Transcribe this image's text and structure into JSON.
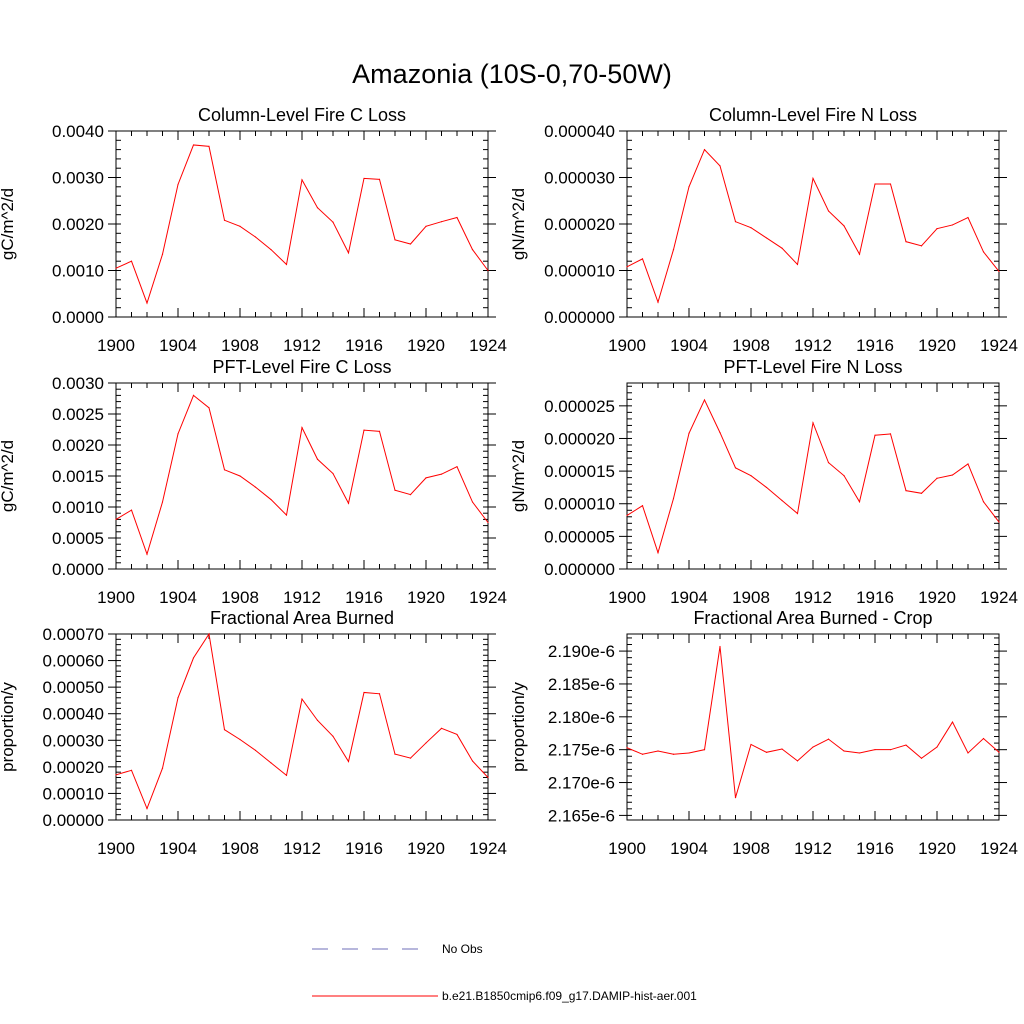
{
  "figure": {
    "title": "Amazonia (10S-0,70-50W)"
  },
  "legend": {
    "obs_label": "No Obs",
    "model_label": "b.e21.B1850cmip6.f09_g17.DAMIP-hist-aer.001",
    "obs_color": "#6f6fb8",
    "model_color": "#ff0000"
  },
  "chart_data": [
    {
      "type": "line",
      "title": "Column-Level Fire C Loss",
      "ylabel": "gC/m^2/d",
      "xlim": [
        1900,
        1924
      ],
      "ylim": [
        0,
        0.004
      ],
      "xticks": [
        "1900",
        "1904",
        "1908",
        "1912",
        "1916",
        "1920",
        "1924"
      ],
      "yticks": [
        [
          "0.0000",
          0
        ],
        [
          "0.0010",
          0.001
        ],
        [
          "0.0020",
          0.002
        ],
        [
          "0.0030",
          0.003
        ],
        [
          "0.0040",
          0.004
        ]
      ],
      "series": [
        {
          "color": "#ff0000",
          "x": [
            1900,
            1901,
            1902,
            1903,
            1904,
            1905,
            1906,
            1907,
            1908,
            1909,
            1910,
            1911,
            1912,
            1913,
            1914,
            1915,
            1916,
            1917,
            1918,
            1919,
            1920,
            1921,
            1922,
            1923,
            1924
          ],
          "y": [
            0.00105,
            0.0012,
            0.0003,
            0.00135,
            0.00285,
            0.0037,
            0.00367,
            0.00208,
            0.00195,
            0.00172,
            0.00145,
            0.00113,
            0.00295,
            0.00235,
            0.00204,
            0.00138,
            0.00298,
            0.00296,
            0.00166,
            0.00157,
            0.00195,
            0.00205,
            0.00214,
            0.00145,
            0.001
          ]
        }
      ]
    },
    {
      "type": "line",
      "title": "Column-Level Fire N Loss",
      "ylabel": "gN/m^2/d",
      "xlim": [
        1900,
        1924
      ],
      "ylim": [
        0,
        4e-05
      ],
      "xticks": [
        "1900",
        "1904",
        "1908",
        "1912",
        "1916",
        "1920",
        "1924"
      ],
      "yticks": [
        [
          "0.000000",
          0
        ],
        [
          "0.000010",
          1e-05
        ],
        [
          "0.000020",
          2e-05
        ],
        [
          "0.000030",
          3e-05
        ],
        [
          "0.000040",
          4e-05
        ]
      ],
      "series": [
        {
          "color": "#ff0000",
          "x": [
            1900,
            1901,
            1902,
            1903,
            1904,
            1905,
            1906,
            1907,
            1908,
            1909,
            1910,
            1911,
            1912,
            1913,
            1914,
            1915,
            1916,
            1917,
            1918,
            1919,
            1920,
            1921,
            1922,
            1923,
            1924
          ],
          "y": [
            1.08e-05,
            1.25e-05,
            3.2e-06,
            1.45e-05,
            2.8e-05,
            3.6e-05,
            3.25e-05,
            2.05e-05,
            1.92e-05,
            1.7e-05,
            1.48e-05,
            1.13e-05,
            2.98e-05,
            2.28e-05,
            1.96e-05,
            1.35e-05,
            2.86e-05,
            2.86e-05,
            1.62e-05,
            1.53e-05,
            1.9e-05,
            1.98e-05,
            2.14e-05,
            1.4e-05,
            9.8e-06
          ]
        }
      ]
    },
    {
      "type": "line",
      "title": "PFT-Level Fire C Loss",
      "ylabel": "gC/m^2/d",
      "xlim": [
        1900,
        1924
      ],
      "ylim": [
        0,
        0.003
      ],
      "xticks": [
        "1900",
        "1904",
        "1908",
        "1912",
        "1916",
        "1920",
        "1924"
      ],
      "yticks": [
        [
          "0.0000",
          0
        ],
        [
          "0.0005",
          0.0005
        ],
        [
          "0.0010",
          0.001
        ],
        [
          "0.0015",
          0.0015
        ],
        [
          "0.0020",
          0.002
        ],
        [
          "0.0025",
          0.0025
        ],
        [
          "0.0030",
          0.003
        ]
      ],
      "series": [
        {
          "color": "#ff0000",
          "x": [
            1900,
            1901,
            1902,
            1903,
            1904,
            1905,
            1906,
            1907,
            1908,
            1909,
            1910,
            1911,
            1912,
            1913,
            1914,
            1915,
            1916,
            1917,
            1918,
            1919,
            1920,
            1921,
            1922,
            1923,
            1924
          ],
          "y": [
            0.0008,
            0.00095,
            0.00024,
            0.00108,
            0.00218,
            0.0028,
            0.0026,
            0.0016,
            0.0015,
            0.00132,
            0.00112,
            0.00087,
            0.00228,
            0.00177,
            0.00154,
            0.00106,
            0.00224,
            0.00222,
            0.00127,
            0.0012,
            0.00147,
            0.00153,
            0.00165,
            0.00108,
            0.00075
          ]
        }
      ]
    },
    {
      "type": "line",
      "title": "PFT-Level Fire N Loss",
      "ylabel": "gN/m^2/d",
      "xlim": [
        1900,
        1924
      ],
      "ylim": [
        0,
        2.85e-05
      ],
      "xticks": [
        "1900",
        "1904",
        "1908",
        "1912",
        "1916",
        "1920",
        "1924"
      ],
      "yticks": [
        [
          "0.000000",
          0
        ],
        [
          "0.000005",
          5e-06
        ],
        [
          "0.000010",
          1e-05
        ],
        [
          "0.000015",
          1.5e-05
        ],
        [
          "0.000020",
          2e-05
        ],
        [
          "0.000025",
          2.5e-05
        ]
      ],
      "series": [
        {
          "color": "#ff0000",
          "x": [
            1900,
            1901,
            1902,
            1903,
            1904,
            1905,
            1906,
            1907,
            1908,
            1909,
            1910,
            1911,
            1912,
            1913,
            1914,
            1915,
            1916,
            1917,
            1918,
            1919,
            1920,
            1921,
            1922,
            1923,
            1924
          ],
          "y": [
            8.2e-06,
            9.7e-06,
            2.5e-06,
            1.08e-05,
            2.08e-05,
            2.59e-05,
            2.09e-05,
            1.55e-05,
            1.43e-05,
            1.25e-05,
            1.05e-05,
            8.5e-06,
            2.24e-05,
            1.63e-05,
            1.43e-05,
            1.03e-05,
            2.05e-05,
            2.07e-05,
            1.2e-05,
            1.16e-05,
            1.39e-05,
            1.44e-05,
            1.61e-05,
            1.03e-05,
            7.2e-06
          ]
        }
      ]
    },
    {
      "type": "line",
      "title": "Fractional Area Burned",
      "ylabel": "proportion/y",
      "xlim": [
        1900,
        1924
      ],
      "ylim": [
        0,
        0.0007
      ],
      "xticks": [
        "1900",
        "1904",
        "1908",
        "1912",
        "1916",
        "1920",
        "1924"
      ],
      "yticks": [
        [
          "0.00000",
          0
        ],
        [
          "0.00010",
          0.0001
        ],
        [
          "0.00020",
          0.0002
        ],
        [
          "0.00030",
          0.0003
        ],
        [
          "0.00040",
          0.0004
        ],
        [
          "0.00050",
          0.0005
        ],
        [
          "0.00060",
          0.0006
        ],
        [
          "0.00070",
          0.0007
        ]
      ],
      "series": [
        {
          "color": "#ff0000",
          "x": [
            1900,
            1901,
            1902,
            1903,
            1904,
            1905,
            1906,
            1907,
            1908,
            1909,
            1910,
            1911,
            1912,
            1913,
            1914,
            1915,
            1916,
            1917,
            1918,
            1919,
            1920,
            1921,
            1922,
            1923,
            1924
          ],
          "y": [
            0.00017,
            0.000187,
            4.3e-05,
            0.000195,
            0.00046,
            0.00061,
            0.0007,
            0.00034,
            0.000303,
            0.000262,
            0.000215,
            0.000168,
            0.000455,
            0.000375,
            0.000315,
            0.00022,
            0.00048,
            0.000475,
            0.000248,
            0.000233,
            0.00029,
            0.000345,
            0.000322,
            0.000222,
            0.00016
          ]
        }
      ]
    },
    {
      "type": "line",
      "title": "Fractional Area Burned - Crop",
      "ylabel": "proportion/y",
      "xlim": [
        1900,
        1924
      ],
      "ylim": [
        2.1643e-06,
        2.1926e-06
      ],
      "xticks": [
        "1900",
        "1904",
        "1908",
        "1912",
        "1916",
        "1920",
        "1924"
      ],
      "yticks": [
        [
          "2.165e-6",
          2.165e-06
        ],
        [
          "2.170e-6",
          2.17e-06
        ],
        [
          "2.175e-6",
          2.175e-06
        ],
        [
          "2.180e-6",
          2.18e-06
        ],
        [
          "2.185e-6",
          2.185e-06
        ],
        [
          "2.190e-6",
          2.19e-06
        ]
      ],
      "series": [
        {
          "color": "#ff0000",
          "x": [
            1900,
            1901,
            1902,
            1903,
            1904,
            1905,
            1906,
            1907,
            1908,
            1909,
            1910,
            1911,
            1912,
            1913,
            1914,
            1915,
            1916,
            1917,
            1918,
            1919,
            1920,
            1921,
            1922,
            1923,
            1924
          ],
          "y": [
            2.1753e-06,
            2.1743e-06,
            2.1748e-06,
            2.1743e-06,
            2.1745e-06,
            2.175e-06,
            2.1907e-06,
            2.1677e-06,
            2.1758e-06,
            2.1746e-06,
            2.1751e-06,
            2.1733e-06,
            2.1754e-06,
            2.1766e-06,
            2.1748e-06,
            2.1745e-06,
            2.175e-06,
            2.175e-06,
            2.1757e-06,
            2.1737e-06,
            2.1754e-06,
            2.1792e-06,
            2.1745e-06,
            2.1767e-06,
            2.1746e-06
          ]
        }
      ]
    }
  ]
}
